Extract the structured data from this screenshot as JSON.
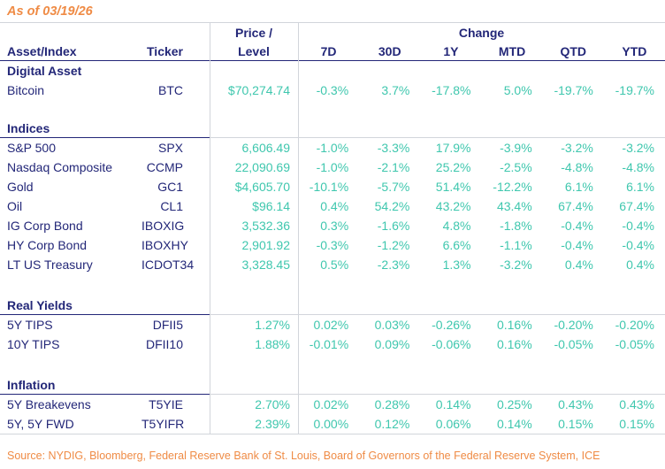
{
  "colors": {
    "navy": "#232778",
    "teal": "#3fc7ae",
    "orange": "#ef8b45",
    "grid": "#d2d5db"
  },
  "chart_data": {
    "type": "table",
    "title": "As of 03/19/26",
    "source": "Source: NYDIG, Bloomberg, Federal Reserve Bank of St. Louis, Board of Governors of the Federal Reserve System, ICE",
    "columns": {
      "asset": "Asset/Index",
      "ticker": "Ticker",
      "price_line1": "Price /",
      "price_line2": "Level",
      "change_group": "Change",
      "change_periods": [
        "7D",
        "30D",
        "1Y",
        "MTD",
        "QTD",
        "YTD"
      ]
    },
    "sections": [
      {
        "label": "Digital Asset",
        "rows": [
          {
            "asset": "Bitcoin",
            "ticker": "BTC",
            "price": "$70,274.74",
            "changes": [
              "-0.3%",
              "3.7%",
              "-17.8%",
              "5.0%",
              "-19.7%",
              "-19.7%"
            ]
          }
        ]
      },
      {
        "label": "Indices",
        "rows": [
          {
            "asset": "S&P 500",
            "ticker": "SPX",
            "price": "6,606.49",
            "changes": [
              "-1.0%",
              "-3.3%",
              "17.9%",
              "-3.9%",
              "-3.2%",
              "-3.2%"
            ]
          },
          {
            "asset": "Nasdaq Composite",
            "ticker": "CCMP",
            "price": "22,090.69",
            "changes": [
              "-1.0%",
              "-2.1%",
              "25.2%",
              "-2.5%",
              "-4.8%",
              "-4.8%"
            ]
          },
          {
            "asset": "Gold",
            "ticker": "GC1",
            "price": "$4,605.70",
            "changes": [
              "-10.1%",
              "-5.7%",
              "51.4%",
              "-12.2%",
              "6.1%",
              "6.1%"
            ]
          },
          {
            "asset": "Oil",
            "ticker": "CL1",
            "price": "$96.14",
            "changes": [
              "0.4%",
              "54.2%",
              "43.2%",
              "43.4%",
              "67.4%",
              "67.4%"
            ]
          },
          {
            "asset": "IG Corp Bond",
            "ticker": "IBOXIG",
            "price": "3,532.36",
            "changes": [
              "0.3%",
              "-1.6%",
              "4.8%",
              "-1.8%",
              "-0.4%",
              "-0.4%"
            ]
          },
          {
            "asset": "HY Corp Bond",
            "ticker": "IBOXHY",
            "price": "2,901.92",
            "changes": [
              "-0.3%",
              "-1.2%",
              "6.6%",
              "-1.1%",
              "-0.4%",
              "-0.4%"
            ]
          },
          {
            "asset": "LT US Treasury",
            "ticker": "ICDOT34",
            "price": "3,328.45",
            "changes": [
              "0.5%",
              "-2.3%",
              "1.3%",
              "-3.2%",
              "0.4%",
              "0.4%"
            ]
          }
        ]
      },
      {
        "label": "Real Yields",
        "rows": [
          {
            "asset": "5Y TIPS",
            "ticker": "DFII5",
            "price": "1.27%",
            "changes": [
              "0.02%",
              "0.03%",
              "-0.26%",
              "0.16%",
              "-0.20%",
              "-0.20%"
            ]
          },
          {
            "asset": "10Y TIPS",
            "ticker": "DFII10",
            "price": "1.88%",
            "changes": [
              "-0.01%",
              "0.09%",
              "-0.06%",
              "0.16%",
              "-0.05%",
              "-0.05%"
            ]
          }
        ]
      },
      {
        "label": "Inflation",
        "rows": [
          {
            "asset": "5Y Breakevens",
            "ticker": "T5YIE",
            "price": "2.70%",
            "changes": [
              "0.02%",
              "0.28%",
              "0.14%",
              "0.25%",
              "0.43%",
              "0.43%"
            ]
          },
          {
            "asset": "5Y, 5Y FWD",
            "ticker": "T5YIFR",
            "price": "2.39%",
            "changes": [
              "0.00%",
              "0.12%",
              "0.06%",
              "0.14%",
              "0.15%",
              "0.15%"
            ]
          }
        ]
      }
    ]
  }
}
